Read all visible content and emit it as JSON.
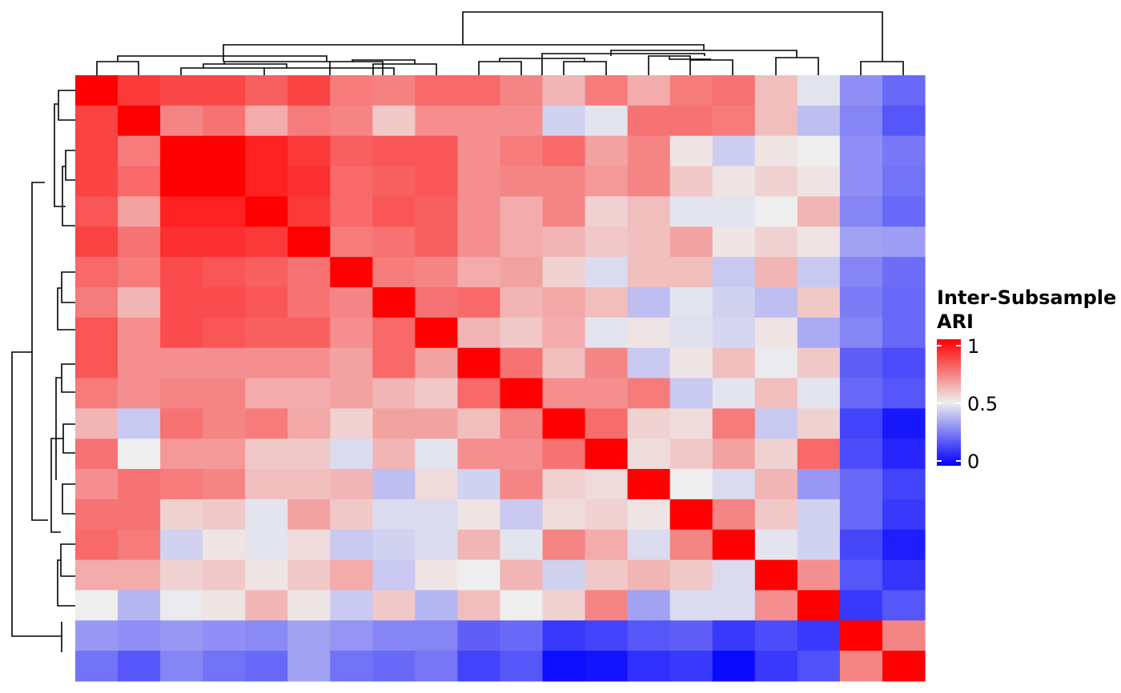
{
  "chart_data": {
    "type": "heatmap",
    "n": 20,
    "values": [
      [
        1.0,
        0.88,
        0.85,
        0.85,
        0.8,
        0.86,
        0.74,
        0.73,
        0.78,
        0.78,
        0.72,
        0.62,
        0.74,
        0.64,
        0.74,
        0.76,
        0.6,
        0.48,
        0.3,
        0.22
      ],
      [
        0.86,
        1.0,
        0.72,
        0.76,
        0.64,
        0.74,
        0.72,
        0.58,
        0.7,
        0.7,
        0.7,
        0.44,
        0.48,
        0.76,
        0.76,
        0.74,
        0.6,
        0.4,
        0.28,
        0.18
      ],
      [
        0.86,
        0.74,
        1.0,
        1.0,
        0.93,
        0.88,
        0.8,
        0.82,
        0.82,
        0.7,
        0.74,
        0.78,
        0.66,
        0.72,
        0.52,
        0.43,
        0.52,
        0.5,
        0.3,
        0.25
      ],
      [
        0.86,
        0.78,
        1.0,
        1.0,
        0.93,
        0.9,
        0.78,
        0.8,
        0.82,
        0.7,
        0.72,
        0.72,
        0.68,
        0.72,
        0.58,
        0.52,
        0.56,
        0.52,
        0.3,
        0.24
      ],
      [
        0.82,
        0.66,
        0.93,
        0.93,
        1.0,
        0.88,
        0.78,
        0.82,
        0.8,
        0.7,
        0.64,
        0.72,
        0.56,
        0.6,
        0.48,
        0.48,
        0.5,
        0.62,
        0.28,
        0.22
      ],
      [
        0.86,
        0.76,
        0.9,
        0.9,
        0.88,
        1.0,
        0.74,
        0.76,
        0.8,
        0.7,
        0.64,
        0.62,
        0.58,
        0.6,
        0.66,
        0.52,
        0.56,
        0.52,
        0.34,
        0.33
      ],
      [
        0.78,
        0.74,
        0.84,
        0.82,
        0.8,
        0.76,
        1.0,
        0.74,
        0.72,
        0.64,
        0.66,
        0.56,
        0.46,
        0.6,
        0.6,
        0.42,
        0.62,
        0.42,
        0.28,
        0.23
      ],
      [
        0.74,
        0.62,
        0.84,
        0.84,
        0.82,
        0.76,
        0.72,
        1.0,
        0.76,
        0.78,
        0.62,
        0.65,
        0.6,
        0.4,
        0.48,
        0.44,
        0.4,
        0.58,
        0.26,
        0.22
      ],
      [
        0.82,
        0.7,
        0.84,
        0.82,
        0.8,
        0.8,
        0.7,
        0.78,
        1.0,
        0.62,
        0.58,
        0.64,
        0.48,
        0.52,
        0.47,
        0.45,
        0.52,
        0.36,
        0.28,
        0.22
      ],
      [
        0.82,
        0.7,
        0.7,
        0.7,
        0.7,
        0.7,
        0.66,
        0.78,
        0.66,
        1.0,
        0.76,
        0.6,
        0.72,
        0.42,
        0.52,
        0.6,
        0.49,
        0.58,
        0.2,
        0.16
      ],
      [
        0.74,
        0.7,
        0.72,
        0.72,
        0.64,
        0.64,
        0.66,
        0.62,
        0.58,
        0.78,
        1.0,
        0.7,
        0.7,
        0.74,
        0.42,
        0.48,
        0.6,
        0.48,
        0.22,
        0.18
      ],
      [
        0.62,
        0.42,
        0.76,
        0.72,
        0.74,
        0.65,
        0.56,
        0.66,
        0.66,
        0.6,
        0.72,
        1.0,
        0.77,
        0.56,
        0.54,
        0.74,
        0.42,
        0.56,
        0.14,
        0.05
      ],
      [
        0.76,
        0.5,
        0.68,
        0.68,
        0.58,
        0.58,
        0.46,
        0.62,
        0.48,
        0.7,
        0.7,
        0.76,
        1.0,
        0.54,
        0.58,
        0.66,
        0.56,
        0.78,
        0.16,
        0.08
      ],
      [
        0.7,
        0.76,
        0.74,
        0.72,
        0.6,
        0.6,
        0.62,
        0.4,
        0.54,
        0.44,
        0.72,
        0.56,
        0.54,
        1.0,
        0.5,
        0.46,
        0.62,
        0.32,
        0.22,
        0.14
      ],
      [
        0.76,
        0.76,
        0.56,
        0.58,
        0.48,
        0.66,
        0.58,
        0.46,
        0.46,
        0.52,
        0.42,
        0.54,
        0.56,
        0.52,
        1.0,
        0.72,
        0.58,
        0.44,
        0.22,
        0.12
      ],
      [
        0.78,
        0.74,
        0.44,
        0.52,
        0.48,
        0.54,
        0.42,
        0.44,
        0.46,
        0.62,
        0.48,
        0.72,
        0.64,
        0.46,
        0.72,
        1.0,
        0.48,
        0.44,
        0.15,
        0.06
      ],
      [
        0.64,
        0.64,
        0.56,
        0.58,
        0.52,
        0.58,
        0.64,
        0.42,
        0.52,
        0.5,
        0.62,
        0.44,
        0.58,
        0.62,
        0.58,
        0.46,
        1.0,
        0.7,
        0.18,
        0.11
      ],
      [
        0.5,
        0.38,
        0.49,
        0.52,
        0.62,
        0.52,
        0.42,
        0.58,
        0.38,
        0.6,
        0.5,
        0.56,
        0.72,
        0.34,
        0.46,
        0.46,
        0.7,
        1.0,
        0.12,
        0.18
      ],
      [
        0.32,
        0.3,
        0.32,
        0.3,
        0.29,
        0.34,
        0.31,
        0.28,
        0.28,
        0.2,
        0.22,
        0.12,
        0.14,
        0.18,
        0.2,
        0.12,
        0.16,
        0.12,
        1.0,
        0.72
      ],
      [
        0.24,
        0.18,
        0.28,
        0.24,
        0.22,
        0.34,
        0.24,
        0.22,
        0.25,
        0.14,
        0.18,
        0.03,
        0.04,
        0.1,
        0.12,
        0.02,
        0.12,
        0.17,
        0.72,
        1.0
      ]
    ],
    "legend": {
      "title_line1": "Inter-Subsample",
      "title_line2": "ARI",
      "ticks": [
        {
          "value": 1,
          "label": "1"
        },
        {
          "value": 0.5,
          "label": "0.5"
        },
        {
          "value": 0,
          "label": "0"
        }
      ],
      "range": [
        0,
        1
      ],
      "colors": {
        "low": "#0000FF",
        "mid": "#EEEEEE",
        "high": "#FF0000"
      }
    }
  }
}
